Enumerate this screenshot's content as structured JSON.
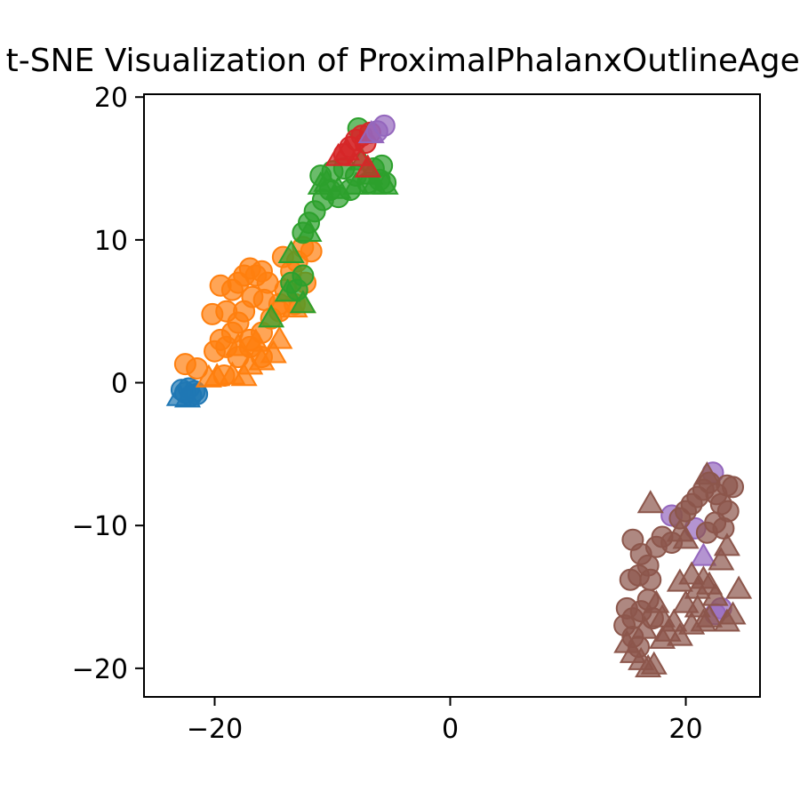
{
  "chart_data": {
    "type": "scatter",
    "title": "t-SNE Visualization of ProximalPhalanxOutlineAgeGroup",
    "xlabel": "",
    "ylabel": "",
    "xlim": [
      -26,
      26.3
    ],
    "ylim": [
      -22,
      20.2
    ],
    "xticks": [
      -20,
      0,
      20
    ],
    "yticks": [
      -20,
      -10,
      0,
      10,
      20
    ],
    "xtick_labels": [
      "−20",
      "0",
      "20"
    ],
    "ytick_labels": [
      "−20",
      "−10",
      "0",
      "10",
      "20"
    ],
    "grid": false,
    "series": [
      {
        "color": "#1f77b4",
        "marker": "circle",
        "points": [
          [
            -22.5,
            -0.7
          ],
          [
            -22.0,
            -0.9
          ],
          [
            -21.7,
            -0.6
          ],
          [
            -22.2,
            -0.4
          ],
          [
            -21.5,
            -0.8
          ],
          [
            -22.8,
            -0.5
          ]
        ]
      },
      {
        "color": "#1f77b4",
        "marker": "triangle",
        "points": [
          [
            -23.0,
            -1.0
          ],
          [
            -22.3,
            -1.1
          ]
        ]
      },
      {
        "color": "#ff7f0e",
        "marker": "circle",
        "points": [
          [
            -22.5,
            1.3
          ],
          [
            -21.5,
            1.0
          ],
          [
            -20.0,
            2.2
          ],
          [
            -19.5,
            3.0
          ],
          [
            -20.2,
            4.8
          ],
          [
            -19.0,
            5.0
          ],
          [
            -19.5,
            6.8
          ],
          [
            -18.5,
            6.5
          ],
          [
            -18.0,
            7.0
          ],
          [
            -17.5,
            7.5
          ],
          [
            -17.0,
            8.0
          ],
          [
            -16.5,
            7.5
          ],
          [
            -16.0,
            7.8
          ],
          [
            -15.5,
            7.0
          ],
          [
            -16.8,
            6.0
          ],
          [
            -17.5,
            5.0
          ],
          [
            -18.0,
            4.2
          ],
          [
            -18.5,
            3.5
          ],
          [
            -19.0,
            2.5
          ],
          [
            -18.0,
            1.8
          ],
          [
            -17.0,
            2.5
          ],
          [
            -16.0,
            3.5
          ],
          [
            -15.2,
            4.5
          ],
          [
            -14.5,
            5.5
          ],
          [
            -14.0,
            6.5
          ],
          [
            -13.5,
            7.8
          ],
          [
            -14.2,
            8.8
          ],
          [
            -13.0,
            8.5
          ],
          [
            -12.5,
            9.5
          ],
          [
            -11.8,
            9.2
          ],
          [
            -12.3,
            7.0
          ],
          [
            -13.2,
            5.5
          ],
          [
            -14.5,
            5.0
          ],
          [
            -15.8,
            5.8
          ],
          [
            -17.0,
            3.0
          ],
          [
            -16.0,
            1.8
          ],
          [
            -19.2,
            0.5
          ]
        ]
      },
      {
        "color": "#ff7f0e",
        "marker": "triangle",
        "points": [
          [
            -20.5,
            0.3
          ],
          [
            -19.8,
            0.4
          ],
          [
            -18.5,
            0.5
          ],
          [
            -17.5,
            0.4
          ],
          [
            -17.0,
            1.2
          ],
          [
            -16.0,
            1.5
          ],
          [
            -15.0,
            2.0
          ],
          [
            -14.5,
            3.0
          ],
          [
            -13.2,
            5.2
          ],
          [
            -12.5,
            5.5
          ],
          [
            -18.0,
            2.5
          ],
          [
            -16.5,
            2.8
          ]
        ]
      },
      {
        "color": "#2ca02c",
        "marker": "circle",
        "points": [
          [
            -12.5,
            10.5
          ],
          [
            -12.0,
            11.2
          ],
          [
            -11.5,
            12.0
          ],
          [
            -10.8,
            12.8
          ],
          [
            -10.2,
            13.5
          ],
          [
            -11.0,
            14.5
          ],
          [
            -10.0,
            14.8
          ],
          [
            -9.0,
            15.0
          ],
          [
            -8.0,
            14.5
          ],
          [
            -7.0,
            14.0
          ],
          [
            -6.0,
            14.2
          ],
          [
            -5.5,
            14.0
          ],
          [
            -6.5,
            15.0
          ],
          [
            -5.8,
            15.2
          ],
          [
            -9.5,
            13.0
          ],
          [
            -8.5,
            13.5
          ],
          [
            -7.8,
            17.8
          ],
          [
            -13.5,
            7.0
          ],
          [
            -12.5,
            7.5
          ],
          [
            -13.0,
            6.5
          ]
        ]
      },
      {
        "color": "#2ca02c",
        "marker": "triangle",
        "points": [
          [
            -13.5,
            9.0
          ],
          [
            -13.8,
            6.3
          ],
          [
            -12.5,
            5.5
          ],
          [
            -15.2,
            4.5
          ],
          [
            -12.0,
            10.5
          ],
          [
            -10.5,
            14.0
          ],
          [
            -9.5,
            13.5
          ],
          [
            -8.0,
            13.8
          ],
          [
            -6.5,
            13.8
          ],
          [
            -5.5,
            13.8
          ],
          [
            -6.8,
            14.5
          ],
          [
            -7.5,
            15.5
          ],
          [
            -11.0,
            13.8
          ]
        ]
      },
      {
        "color": "#d62728",
        "marker": "circle",
        "points": [
          [
            -8.5,
            16.5
          ],
          [
            -8.0,
            17.0
          ],
          [
            -7.2,
            16.8
          ],
          [
            -6.8,
            17.5
          ],
          [
            -7.5,
            17.3
          ],
          [
            -9.0,
            16.0
          ]
        ]
      },
      {
        "color": "#d62728",
        "marker": "triangle",
        "points": [
          [
            -9.5,
            15.8
          ],
          [
            -8.8,
            16.2
          ],
          [
            -7.0,
            15.0
          ],
          [
            -7.8,
            15.8
          ]
        ]
      },
      {
        "color": "#9467bd",
        "marker": "circle",
        "points": [
          [
            -6.2,
            17.6
          ],
          [
            -5.6,
            18.0
          ],
          [
            22.3,
            -6.3
          ],
          [
            18.8,
            -9.3
          ],
          [
            20.8,
            -10.2
          ],
          [
            22.5,
            -16.2
          ],
          [
            23.0,
            -15.8
          ]
        ]
      },
      {
        "color": "#9467bd",
        "marker": "triangle",
        "points": [
          [
            -6.7,
            17.4
          ],
          [
            21.5,
            -12.2
          ]
        ]
      },
      {
        "color": "#8c564b",
        "marker": "circle",
        "points": [
          [
            15.5,
            -11.0
          ],
          [
            16.2,
            -12.0
          ],
          [
            16.8,
            -12.8
          ],
          [
            17.5,
            -11.5
          ],
          [
            18.0,
            -10.8
          ],
          [
            18.8,
            -11.2
          ],
          [
            16.0,
            -13.5
          ],
          [
            15.3,
            -13.8
          ],
          [
            17.0,
            -13.8
          ],
          [
            19.5,
            -9.5
          ],
          [
            20.0,
            -9.0
          ],
          [
            20.5,
            -8.5
          ],
          [
            21.0,
            -8.0
          ],
          [
            21.5,
            -7.5
          ],
          [
            22.0,
            -7.0
          ],
          [
            22.6,
            -7.8
          ],
          [
            23.0,
            -8.5
          ],
          [
            23.5,
            -7.2
          ],
          [
            24.0,
            -7.3
          ],
          [
            23.6,
            -9.0
          ],
          [
            22.5,
            -9.8
          ],
          [
            21.8,
            -10.5
          ],
          [
            23.2,
            -10.2
          ],
          [
            15.0,
            -15.8
          ],
          [
            15.5,
            -16.5
          ],
          [
            16.2,
            -16.0
          ],
          [
            14.8,
            -17.0
          ],
          [
            15.5,
            -17.8
          ],
          [
            16.0,
            -18.5
          ],
          [
            17.2,
            -16.5
          ],
          [
            16.8,
            -15.2
          ]
        ]
      },
      {
        "color": "#8c564b",
        "marker": "triangle",
        "points": [
          [
            17.0,
            -8.5
          ],
          [
            19.5,
            -10.5
          ],
          [
            20.0,
            -11.0
          ],
          [
            19.5,
            -14.0
          ],
          [
            20.5,
            -13.5
          ],
          [
            21.0,
            -14.5
          ],
          [
            21.5,
            -13.8
          ],
          [
            22.0,
            -14.2
          ],
          [
            23.0,
            -12.5
          ],
          [
            23.5,
            -11.5
          ],
          [
            24.5,
            -14.5
          ],
          [
            21.8,
            -6.5
          ],
          [
            18.0,
            -16.5
          ],
          [
            19.0,
            -16.8
          ],
          [
            20.0,
            -15.5
          ],
          [
            21.0,
            -15.8
          ],
          [
            22.0,
            -16.5
          ],
          [
            23.5,
            -16.8
          ],
          [
            24.0,
            -16.3
          ],
          [
            15.5,
            -19.0
          ],
          [
            16.2,
            -19.5
          ],
          [
            16.8,
            -20.0
          ],
          [
            17.3,
            -19.8
          ],
          [
            18.5,
            -17.5
          ],
          [
            19.5,
            -17.8
          ],
          [
            20.5,
            -17.0
          ],
          [
            21.5,
            -16.8
          ],
          [
            17.5,
            -15.5
          ],
          [
            18.0,
            -18.0
          ],
          [
            16.5,
            -17.3
          ],
          [
            15.0,
            -18.3
          ],
          [
            22.5,
            -15.0
          ]
        ]
      }
    ]
  }
}
